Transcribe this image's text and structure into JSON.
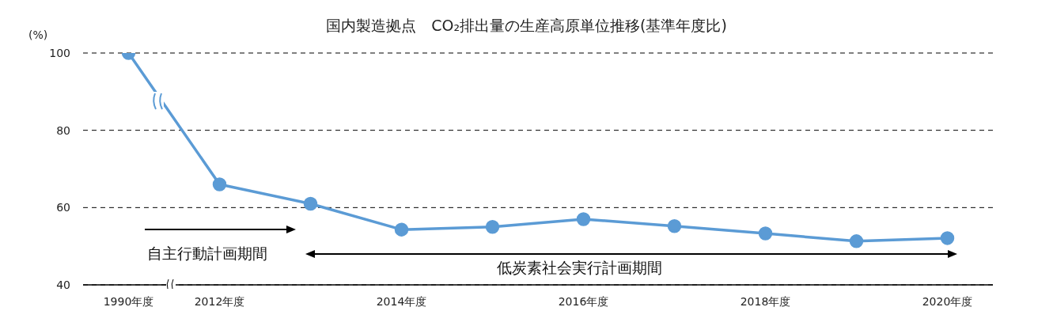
{
  "chart_data": {
    "type": "line",
    "title": "国内製造拠点　CO₂排出量の生産高原単位推移(基準年度比)",
    "ylabel": "(%)",
    "categories": [
      "1990年度",
      "2012年度",
      null,
      "2014年度",
      null,
      "2016年度",
      null,
      "2018年度",
      null,
      "2020年度"
    ],
    "series": [
      {
        "color": "#5b9bd5",
        "values": [
          100,
          66,
          61,
          54.3,
          55,
          57,
          55.2,
          53.3,
          51.3,
          52.1
        ]
      }
    ],
    "ylim": [
      40,
      100
    ],
    "yticks": [
      40,
      60,
      80,
      100
    ],
    "grid": "y",
    "line_style": "solid",
    "marker": "circle",
    "legend": false,
    "annotations": [
      "自主行動計画期間",
      "低炭素社会実行計画期間"
    ]
  }
}
